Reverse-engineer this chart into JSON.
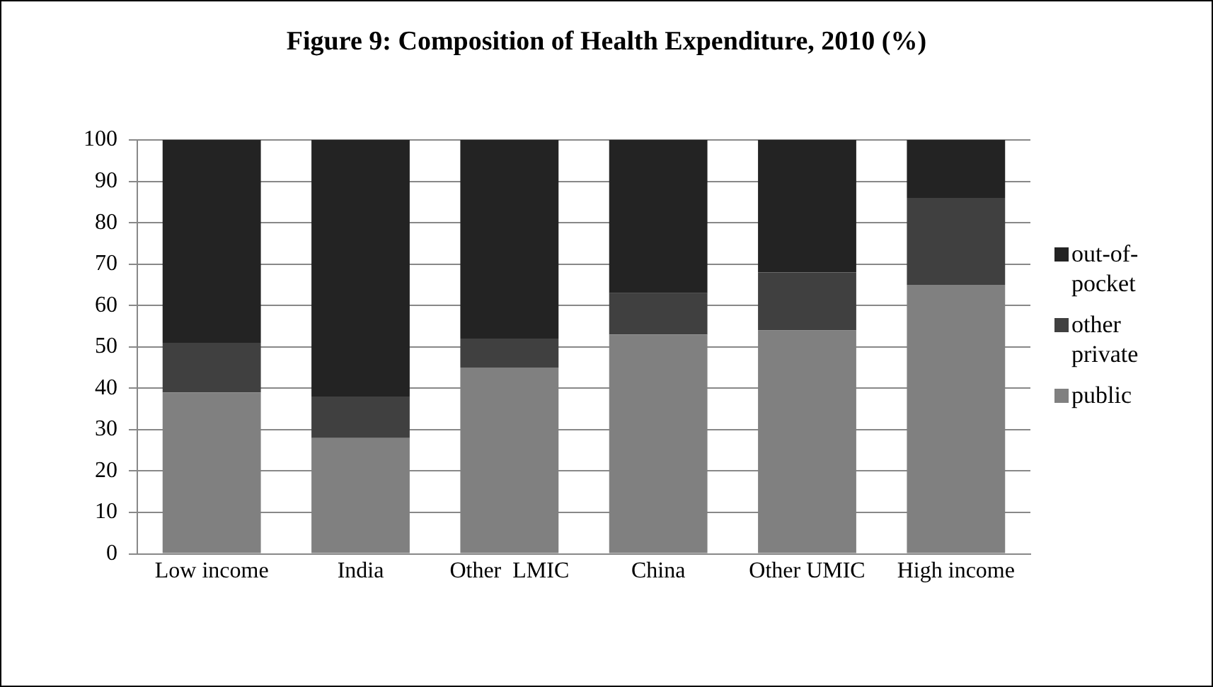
{
  "chart_data": {
    "type": "bar",
    "title": "Figure 9: Composition of Health Expenditure, 2010 (%)",
    "categories": [
      "Low income",
      "India",
      "Other  LMIC",
      "China",
      "Other UMIC",
      "High income"
    ],
    "series": [
      {
        "name": "public",
        "color": "#808080",
        "values": [
          39,
          28,
          45,
          53,
          54,
          65
        ]
      },
      {
        "name": "other private",
        "color": "#404040",
        "values": [
          12,
          10,
          7,
          10,
          14,
          21
        ]
      },
      {
        "name": "out-of-pocket",
        "color": "#232323",
        "values": [
          49,
          62,
          48,
          37,
          32,
          14
        ]
      }
    ],
    "stacked": true,
    "ylim": [
      0,
      100
    ],
    "yticks": [
      0,
      10,
      20,
      30,
      40,
      50,
      60,
      70,
      80,
      90,
      100
    ],
    "grid": "y",
    "legend": "right"
  }
}
